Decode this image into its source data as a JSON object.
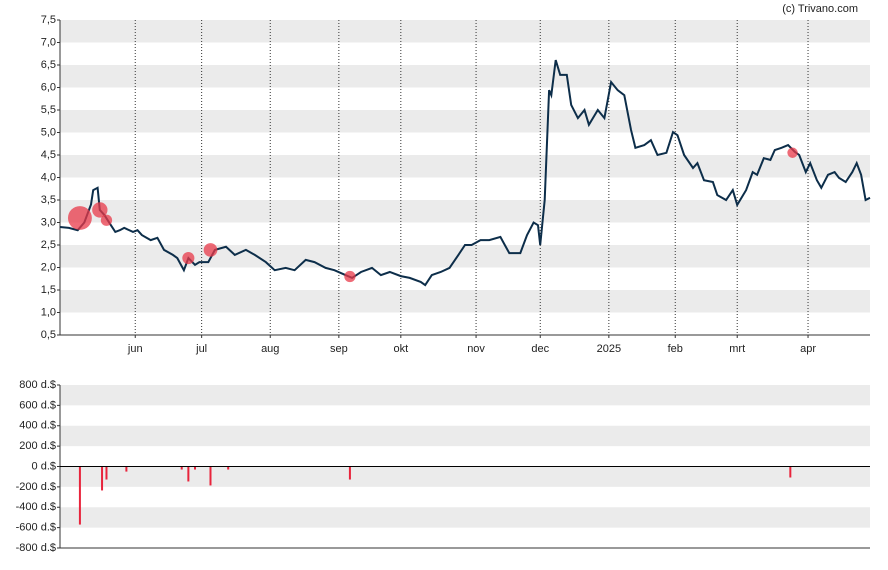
{
  "note_text": "(c) Trivano.com",
  "chart_data": [
    {
      "type": "line",
      "color": "#0d2e4a",
      "grid": true,
      "xlim": [
        0,
        366
      ],
      "xticks": [
        {
          "value": 34,
          "label": "jun"
        },
        {
          "value": 64,
          "label": "jul"
        },
        {
          "value": 95,
          "label": "aug"
        },
        {
          "value": 126,
          "label": "sep"
        },
        {
          "value": 154,
          "label": "okt"
        },
        {
          "value": 188,
          "label": "nov"
        },
        {
          "value": 217,
          "label": "dec"
        },
        {
          "value": 248,
          "label": "2025"
        },
        {
          "value": 278,
          "label": "feb"
        },
        {
          "value": 306,
          "label": "mrt"
        },
        {
          "value": 338,
          "label": "apr"
        }
      ],
      "ylim": [
        0.5,
        7.5
      ],
      "yticks": [
        {
          "value": 0.5,
          "label": "0,5"
        },
        {
          "value": 1,
          "label": "1,0"
        },
        {
          "value": 1.5,
          "label": "1,5"
        },
        {
          "value": 2,
          "label": "2,0"
        },
        {
          "value": 2.5,
          "label": "2,5"
        },
        {
          "value": 3,
          "label": "3,0"
        },
        {
          "value": 3.5,
          "label": "3,5"
        },
        {
          "value": 4,
          "label": "4,0"
        },
        {
          "value": 4.5,
          "label": "4,5"
        },
        {
          "value": 5,
          "label": "5,0"
        },
        {
          "value": 5.5,
          "label": "5,5"
        },
        {
          "value": 6,
          "label": "6,0"
        },
        {
          "value": 6.5,
          "label": "6,5"
        },
        {
          "value": 7,
          "label": "7,0"
        },
        {
          "value": 7.5,
          "label": "7,5"
        }
      ],
      "x": [
        0,
        4,
        8,
        11,
        14,
        15,
        17,
        18,
        20,
        23,
        25,
        27,
        29,
        33,
        35,
        37,
        41,
        44,
        47,
        51,
        53,
        56,
        58,
        61,
        63,
        67,
        70,
        75,
        79,
        84,
        88,
        93,
        97,
        102,
        106,
        111,
        115,
        120,
        124,
        129,
        132,
        136,
        141,
        145,
        149,
        154,
        158,
        163,
        165,
        168,
        172,
        176,
        180,
        183,
        186,
        190,
        194,
        199,
        201,
        203,
        208,
        211,
        214,
        216,
        217,
        219,
        221,
        222,
        224,
        226,
        229,
        231,
        234,
        237,
        239,
        243,
        246,
        249,
        252,
        255,
        258,
        260,
        264,
        267,
        270,
        274,
        277,
        279,
        282,
        286,
        288,
        291,
        295,
        297,
        301,
        304,
        306,
        310,
        313,
        315,
        318,
        321,
        323,
        326,
        329,
        332,
        334,
        337,
        339,
        342,
        344,
        347,
        350,
        352,
        355,
        358,
        360,
        362,
        364,
        366
      ],
      "values": [
        2.9,
        2.88,
        2.83,
        3.0,
        3.4,
        3.72,
        3.77,
        3.28,
        3.17,
        2.94,
        2.79,
        2.83,
        2.88,
        2.79,
        2.83,
        2.72,
        2.61,
        2.66,
        2.39,
        2.28,
        2.21,
        1.94,
        2.21,
        2.06,
        2.12,
        2.12,
        2.39,
        2.46,
        2.28,
        2.39,
        2.28,
        2.12,
        1.94,
        1.99,
        1.94,
        2.17,
        2.12,
        1.99,
        1.94,
        1.83,
        1.77,
        1.9,
        1.99,
        1.83,
        1.9,
        1.81,
        1.77,
        1.68,
        1.61,
        1.83,
        1.9,
        1.99,
        2.28,
        2.5,
        2.5,
        2.61,
        2.61,
        2.68,
        2.5,
        2.32,
        2.32,
        2.72,
        3.0,
        2.94,
        2.5,
        3.5,
        5.94,
        5.83,
        6.61,
        6.28,
        6.28,
        5.61,
        5.32,
        5.5,
        5.17,
        5.5,
        5.32,
        6.12,
        5.94,
        5.83,
        5.06,
        4.66,
        4.72,
        4.83,
        4.5,
        4.55,
        5.01,
        4.94,
        4.5,
        4.21,
        4.32,
        3.94,
        3.9,
        3.61,
        3.5,
        3.72,
        3.39,
        3.72,
        4.12,
        4.06,
        4.43,
        4.39,
        4.61,
        4.66,
        4.72,
        4.57,
        4.5,
        4.12,
        4.32,
        3.94,
        3.77,
        4.06,
        4.12,
        3.99,
        3.9,
        4.12,
        4.32,
        4.06,
        3.5,
        3.55
      ],
      "bubbles": {
        "color": "#e8394a",
        "x": [
          9,
          18,
          21,
          58,
          68,
          131,
          331
        ],
        "values": [
          3.1,
          3.28,
          3.05,
          2.21,
          2.39,
          1.8,
          4.55
        ],
        "sizes": [
          570,
          235,
          128,
          147,
          186,
          128,
          108
        ]
      }
    },
    {
      "type": "bar",
      "color": "#e8243c",
      "grid": true,
      "xlim": [
        0,
        366
      ],
      "ylim": [
        -800,
        800
      ],
      "yticks": [
        {
          "value": -800,
          "label": "-800 d.$"
        },
        {
          "value": -600,
          "label": "-600 d.$"
        },
        {
          "value": -400,
          "label": "-400 d.$"
        },
        {
          "value": -200,
          "label": "-200 d.$"
        },
        {
          "value": 0,
          "label": "0 d.$"
        },
        {
          "value": 200,
          "label": "200 d.$"
        },
        {
          "value": 400,
          "label": "400 d.$"
        },
        {
          "value": 600,
          "label": "600 d.$"
        },
        {
          "value": 800,
          "label": "800 d.$"
        }
      ],
      "x": [
        9,
        19,
        21,
        30,
        55,
        58,
        61,
        68,
        76,
        131,
        330
      ],
      "values": [
        -570,
        -235,
        -128,
        -50,
        -30,
        -147,
        -30,
        -186,
        -30,
        -128,
        -108
      ]
    }
  ]
}
